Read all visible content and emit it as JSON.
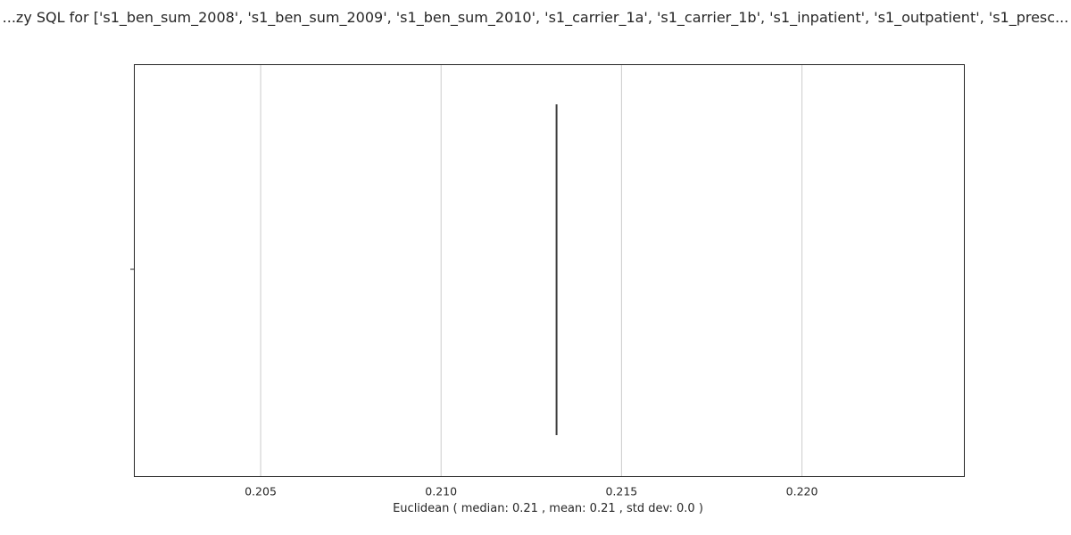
{
  "chart_data": {
    "type": "box",
    "orientation": "horizontal",
    "title": "...zy SQL for ['s1_ben_sum_2008', 's1_ben_sum_2009', 's1_ben_sum_2010', 's1_carrier_1a', 's1_carrier_1b', 's1_inpatient', 's1_outpatient', 's1_presc...",
    "xlabel": "Euclidean ( median: 0.21 , mean: 0.21 , std dev: 0.0 )",
    "ylabel": "",
    "xlim": [
      0.2015,
      0.2245
    ],
    "x_ticks": [
      0.205,
      0.21,
      0.215,
      0.22
    ],
    "x_tick_labels": [
      "0.205",
      "0.210",
      "0.215",
      "0.220"
    ],
    "grid": "x",
    "series": [
      {
        "value": 0.2132,
        "median": 0.2132,
        "q1": 0.2132,
        "q3": 0.2132,
        "whisker_low": 0.2132,
        "whisker_high": 0.2132
      }
    ],
    "colors": {
      "grid": "#cccccc",
      "frame": "#262626",
      "box_line": "#3d3d3d",
      "text": "#262626"
    }
  }
}
